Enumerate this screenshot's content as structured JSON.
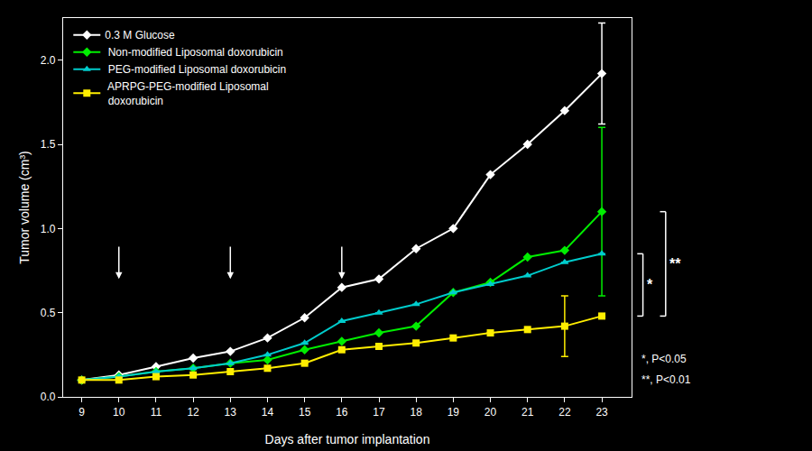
{
  "chart_data": {
    "type": "line",
    "x": [
      9,
      10,
      11,
      12,
      13,
      14,
      15,
      16,
      17,
      18,
      19,
      20,
      21,
      22,
      23
    ],
    "xlabel": "Days after tumor implantation",
    "ylabel": "Tumor volume (cm³)",
    "xlim": [
      8.5,
      23.8
    ],
    "ylim": [
      0.0,
      2.25
    ],
    "xticks": [
      9,
      10,
      11,
      12,
      13,
      14,
      15,
      16,
      17,
      18,
      19,
      20,
      21,
      22,
      23
    ],
    "yticks": [
      {
        "value": 0.0,
        "label": "0.0"
      },
      0.5,
      {
        "value": 1.0,
        "label": "1.0"
      },
      1.5,
      {
        "value": 2.0,
        "label": "2.0"
      }
    ],
    "grid": false,
    "legend": "upper left",
    "background_color": "#000000",
    "series": [
      {
        "name": "0.3 M Glucose",
        "color": "#ffffff",
        "marker": "diamond",
        "values": [
          0.1,
          0.13,
          0.18,
          0.23,
          0.27,
          0.35,
          0.47,
          0.65,
          0.7,
          0.88,
          1.0,
          1.32,
          1.5,
          1.7,
          1.92
        ],
        "errors": [
          0.0,
          0.0,
          0.0,
          0.0,
          0.0,
          0.0,
          0.0,
          0.0,
          0.0,
          0.0,
          0.0,
          0.0,
          0.0,
          0.0,
          0.3
        ]
      },
      {
        "name": " Non-modified Liposomal doxorubicin",
        "color": "#00ee00",
        "marker": "diamond",
        "values": [
          0.1,
          0.12,
          0.15,
          0.17,
          0.2,
          0.22,
          0.28,
          0.33,
          0.38,
          0.42,
          0.62,
          0.68,
          0.83,
          0.87,
          1.1
        ],
        "errors": [
          0.0,
          0.0,
          0.0,
          0.0,
          0.0,
          0.0,
          0.0,
          0.0,
          0.0,
          0.0,
          0.0,
          0.0,
          0.0,
          0.0,
          0.5
        ]
      },
      {
        "name": " PEG-modified Liposomal doxorubicin",
        "color": "#00cccc",
        "marker": "triangle-up",
        "values": [
          0.1,
          0.12,
          0.15,
          0.17,
          0.2,
          0.25,
          0.32,
          0.45,
          0.5,
          0.55,
          0.62,
          0.67,
          0.72,
          0.8,
          0.85
        ],
        "errors": [
          0.0,
          0.0,
          0.0,
          0.0,
          0.0,
          0.0,
          0.0,
          0.0,
          0.0,
          0.0,
          0.0,
          0.0,
          0.0,
          0.0,
          0.0
        ]
      },
      {
        "name": " APRPG-PEG-modified Liposomal\n doxorubicin",
        "color": "#ffee00",
        "marker": "square",
        "values": [
          0.1,
          0.1,
          0.12,
          0.13,
          0.15,
          0.17,
          0.2,
          0.28,
          0.3,
          0.32,
          0.35,
          0.38,
          0.4,
          0.42,
          0.48
        ],
        "errors": [
          0.0,
          0.0,
          0.0,
          0.0,
          0.0,
          0.0,
          0.0,
          0.0,
          0.0,
          0.0,
          0.0,
          0.0,
          0.0,
          0.18,
          0.0
        ]
      }
    ],
    "arrows": [
      {
        "x": 10,
        "y_start": 0.9,
        "y_end": 0.7
      },
      {
        "x": 13,
        "y_start": 0.9,
        "y_end": 0.7
      },
      {
        "x": 16,
        "y_start": 0.9,
        "y_end": 0.7
      }
    ],
    "brackets": [
      {
        "y": [
          0.48,
          0.85
        ],
        "label": "*"
      },
      {
        "y": [
          0.48,
          1.1
        ],
        "label": "**"
      }
    ],
    "annotations": [
      "*, P<0.05",
      "**, P<0.01"
    ]
  }
}
